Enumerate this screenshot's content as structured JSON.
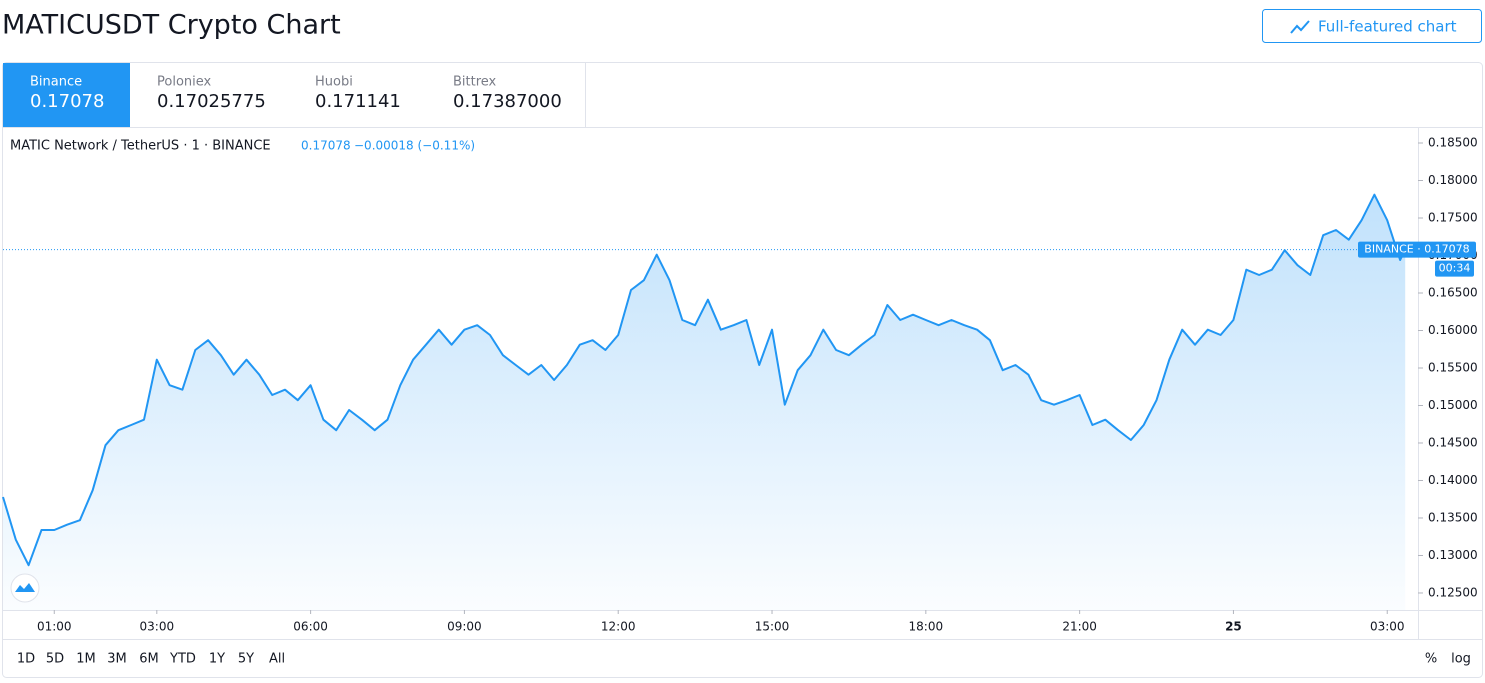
{
  "header": {
    "title": "MATICUSDT Crypto Chart",
    "button": "Full-featured chart"
  },
  "tabs": [
    {
      "name": "Binance",
      "price": "0.17078"
    },
    {
      "name": "Poloniex",
      "price": "0.17025775"
    },
    {
      "name": "Huobi",
      "price": "0.171141"
    },
    {
      "name": "Bittrex",
      "price": "0.17387000"
    }
  ],
  "chart_data": {
    "type": "line",
    "title": "MATIC Network / TetherUS · 1 · BINANCE",
    "legend_price": "0.17078",
    "legend_change": "−0.00018 (−0.11%)",
    "color": "#2196f3",
    "x": [
      0,
      0.25,
      0.5,
      0.75,
      1,
      1.25,
      1.5,
      1.75,
      2,
      2.25,
      2.5,
      2.75,
      3,
      3.25,
      3.5,
      3.75,
      4,
      4.25,
      4.5,
      4.75,
      5,
      5.25,
      5.5,
      5.75,
      6,
      6.25,
      6.5,
      6.75,
      7,
      7.25,
      7.5,
      7.75,
      8,
      8.25,
      8.5,
      8.75,
      9,
      9.25,
      9.5,
      9.75,
      10,
      10.25,
      10.5,
      10.75,
      11,
      11.25,
      11.5,
      11.75,
      12,
      12.25,
      12.5,
      12.75,
      13,
      13.25,
      13.5,
      13.75,
      14,
      14.25,
      14.5,
      14.75,
      15,
      15.25,
      15.5,
      15.75,
      16,
      16.25,
      16.5,
      16.75,
      17,
      17.25,
      17.5,
      17.75,
      18,
      18.25,
      18.5,
      18.75,
      19,
      19.25,
      19.5,
      19.75,
      20,
      20.25,
      20.5,
      20.75,
      21,
      21.25,
      21.5,
      21.75,
      22,
      22.25,
      22.5,
      22.75,
      23,
      23.25,
      23.5,
      23.75,
      24,
      24.25,
      24.5,
      24.75,
      25,
      25.25,
      25.5,
      25.75,
      26,
      26.25,
      26.5,
      26.75,
      27,
      27.25,
      27.35
    ],
    "values": [
      0.1378,
      0.1321,
      0.1287,
      0.1334,
      0.1334,
      0.1341,
      0.1347,
      0.1387,
      0.1447,
      0.1467,
      0.1474,
      0.1481,
      0.1561,
      0.1527,
      0.1521,
      0.1574,
      0.1587,
      0.1567,
      0.1541,
      0.1561,
      0.1541,
      0.1514,
      0.1521,
      0.1507,
      0.1527,
      0.1481,
      0.1467,
      0.1494,
      0.1481,
      0.1467,
      0.1481,
      0.1527,
      0.1561,
      0.1581,
      0.1601,
      0.1581,
      0.1601,
      0.1607,
      0.1594,
      0.1567,
      0.1554,
      0.1541,
      0.1554,
      0.1534,
      0.1554,
      0.1581,
      0.1587,
      0.1574,
      0.1594,
      0.1654,
      0.1667,
      0.1701,
      0.1667,
      0.1614,
      0.1607,
      0.1641,
      0.1601,
      0.1607,
      0.1614,
      0.1554,
      0.1601,
      0.1501,
      0.1547,
      0.1567,
      0.1601,
      0.1574,
      0.1567,
      0.1581,
      0.1594,
      0.1634,
      0.1614,
      0.1621,
      0.1614,
      0.1607,
      0.1614,
      0.1607,
      0.1601,
      0.1587,
      0.1547,
      0.1554,
      0.1541,
      0.1507,
      0.1501,
      0.1507,
      0.1514,
      0.1474,
      0.1481,
      0.1467,
      0.1454,
      0.1474,
      0.1507,
      0.1561,
      0.1601,
      0.1581,
      0.1601,
      0.1594,
      0.1614,
      0.1681,
      0.1674,
      0.1681,
      0.1707,
      0.1687,
      0.1674,
      0.1727,
      0.1734,
      0.1721,
      0.1747,
      0.1781,
      0.1747,
      0.1694,
      0.17078
    ],
    "last_price": 0.17078,
    "price_label": "BINANCE · 0.17078",
    "countdown": "00:34",
    "xlim": [
      0,
      27.6
    ],
    "ylim": [
      0.12273,
      0.187
    ],
    "xticks": [
      {
        "value": 1,
        "label": "01:00"
      },
      {
        "value": 3,
        "label": "03:00"
      },
      {
        "value": 6,
        "label": "06:00"
      },
      {
        "value": 9,
        "label": "09:00"
      },
      {
        "value": 12,
        "label": "12:00"
      },
      {
        "value": 15,
        "label": "15:00"
      },
      {
        "value": 18,
        "label": "18:00"
      },
      {
        "value": 21,
        "label": "21:00"
      },
      {
        "value": 24,
        "label": "25"
      },
      {
        "value": 27,
        "label": "03:00"
      }
    ],
    "yticks": [
      {
        "value": 0.125,
        "label": "0.12500"
      },
      {
        "value": 0.13,
        "label": "0.13000"
      },
      {
        "value": 0.135,
        "label": "0.13500"
      },
      {
        "value": 0.14,
        "label": "0.14000"
      },
      {
        "value": 0.145,
        "label": "0.14500"
      },
      {
        "value": 0.15,
        "label": "0.15000"
      },
      {
        "value": 0.155,
        "label": "0.15500"
      },
      {
        "value": 0.16,
        "label": "0.16000"
      },
      {
        "value": 0.165,
        "label": "0.16500"
      },
      {
        "value": 0.17,
        "label": "0.17000"
      },
      {
        "value": 0.175,
        "label": "0.17500"
      },
      {
        "value": 0.18,
        "label": "0.18000"
      },
      {
        "value": 0.185,
        "label": "0.18500"
      }
    ],
    "grid": false
  },
  "ranges": [
    "1D",
    "5D",
    "1M",
    "3M",
    "6M",
    "YTD",
    "1Y",
    "5Y",
    "All"
  ],
  "scale_options": [
    "%",
    "log"
  ]
}
